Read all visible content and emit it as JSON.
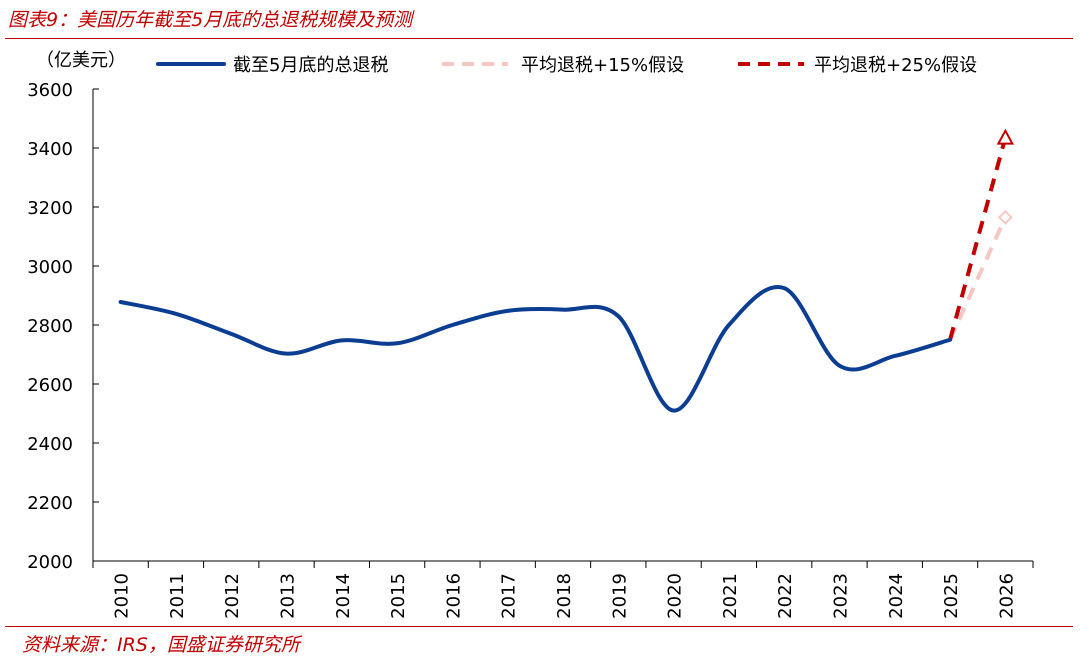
{
  "figure": {
    "title": "图表9：美国历年截至5月底的总退税规模及预测",
    "source": "资料来源：IRS，国盛证券研究所"
  },
  "chart_data": {
    "type": "line",
    "unit_label": "（亿美元）",
    "categories": [
      "2010",
      "2011",
      "2012",
      "2013",
      "2014",
      "2015",
      "2016",
      "2017",
      "2018",
      "2019",
      "2020",
      "2021",
      "2022",
      "2023",
      "2024",
      "2025",
      "2026"
    ],
    "ylim": [
      2000,
      3600
    ],
    "yticks": [
      2000,
      2200,
      2400,
      2600,
      2800,
      3000,
      3200,
      3400,
      3600
    ],
    "grid": false,
    "legend_position": "top",
    "series": [
      {
        "name": "截至5月底的总退税",
        "color": "#0b3d91",
        "style": "solid",
        "x": [
          "2010",
          "2011",
          "2012",
          "2013",
          "2014",
          "2015",
          "2016",
          "2017",
          "2018",
          "2019",
          "2020",
          "2021",
          "2022",
          "2023",
          "2024",
          "2025"
        ],
        "values": [
          2878,
          2838,
          2770,
          2703,
          2748,
          2738,
          2800,
          2848,
          2852,
          2830,
          2510,
          2800,
          2925,
          2662,
          2695,
          2750
        ]
      },
      {
        "name": "平均退税+15%假设",
        "color": "#f4c7c3",
        "style": "dashed",
        "marker": "diamond",
        "x": [
          "2025",
          "2026"
        ],
        "values": [
          2750,
          3165
        ]
      },
      {
        "name": "平均退税+25%假设",
        "color": "#c00000",
        "style": "dashed",
        "marker": "triangle",
        "x": [
          "2025",
          "2026"
        ],
        "values": [
          2750,
          3435
        ]
      }
    ]
  }
}
